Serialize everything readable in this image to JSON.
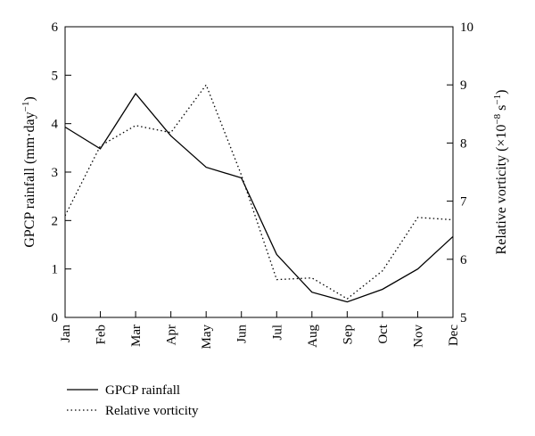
{
  "chart_data": {
    "type": "line",
    "categories": [
      "Jan",
      "Feb",
      "Mar",
      "Apr",
      "May",
      "Jun",
      "Jul",
      "Aug",
      "Sep",
      "Oct",
      "Nov",
      "Dec"
    ],
    "series": [
      {
        "name": "GPCP rainfall",
        "axis": "left",
        "style": "solid",
        "color": "#000000",
        "values": [
          3.93,
          3.48,
          4.62,
          3.75,
          3.1,
          2.88,
          1.3,
          0.52,
          0.32,
          0.58,
          1.0,
          1.67
        ]
      },
      {
        "name": "Relative vorticity",
        "axis": "right",
        "style": "dotted",
        "color": "#000000",
        "values": [
          6.75,
          7.95,
          8.3,
          8.18,
          9.0,
          7.45,
          5.65,
          5.68,
          5.32,
          5.8,
          6.72,
          6.68
        ]
      }
    ],
    "left_axis": {
      "label_main": "GPCP rainfall (mm·day",
      "label_sup": "−1",
      "label_end": ")",
      "ylim": [
        0,
        6
      ],
      "ticks": [
        "0",
        "1",
        "2",
        "3",
        "4",
        "5",
        "6"
      ]
    },
    "right_axis": {
      "label_main": "Relative vorticity (×10",
      "label_sup1": "−8",
      "label_mid": " s",
      "label_sup2": "−1",
      "label_end": ")",
      "ylim": [
        5,
        10
      ],
      "ticks": [
        "5",
        "6",
        "7",
        "8",
        "9",
        "10"
      ]
    },
    "grid": false,
    "legend_position": "bottom-left"
  }
}
